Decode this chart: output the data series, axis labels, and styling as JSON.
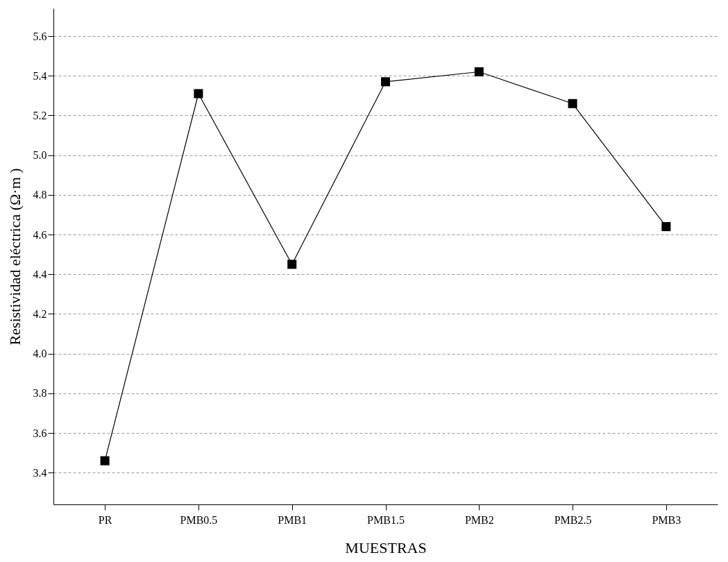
{
  "chart_data": {
    "type": "line",
    "xlabel": "MUESTRAS",
    "ylabel": "Resistividad eléctrica (Ω·m )",
    "categories": [
      "PR",
      "PMB0.5",
      "PMB1",
      "PMB1.5",
      "PMB2",
      "PMB2.5",
      "PMB3"
    ],
    "series": [
      {
        "color": "#000000",
        "values": [
          3.46,
          5.31,
          4.45,
          5.37,
          5.42,
          5.26,
          4.64
        ]
      }
    ],
    "ylim": [
      3.24,
      5.74
    ],
    "yticks": [
      3.4,
      3.6,
      3.8,
      {
        "value": 4,
        "label": "4.0"
      },
      4.2,
      4.4,
      4.6,
      4.8,
      {
        "value": 5,
        "label": "5.0"
      },
      5.2,
      5.4,
      5.6
    ],
    "grid": "y",
    "marker": "square",
    "line_style": "solid",
    "legend": false
  }
}
